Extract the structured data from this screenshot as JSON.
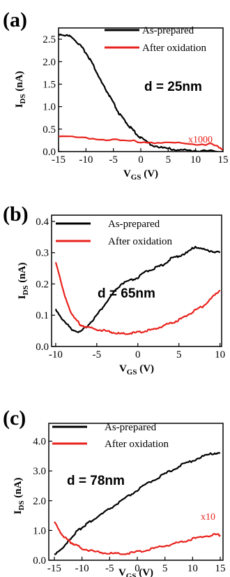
{
  "chart_data": [
    {
      "type": "line",
      "panel_label": "(a)",
      "xlabel": "V_GS (V)",
      "ylabel": "I_DS (nA)",
      "xlim": [
        -15,
        15
      ],
      "ylim": [
        0,
        2.75
      ],
      "xticks": [
        "-15",
        "-10",
        "-5",
        "0",
        "5",
        "10",
        "15"
      ],
      "yticks": [
        "0.0",
        "0.5",
        "1.0",
        "1.5",
        "2.0",
        "2.5"
      ],
      "annotation": "d = 25nm",
      "multiplier": "x1000",
      "legend_position": "top-right",
      "colors": {
        "As-prepared": "#000000",
        "After oxidation": "#e8221c"
      },
      "series": [
        {
          "name": "As-prepared",
          "x": [
            -15,
            -13.5,
            -12.5,
            -11,
            -10,
            -9,
            -8,
            -7,
            -6,
            -5,
            -4,
            -3,
            -2,
            -1,
            0,
            2,
            4,
            6,
            8,
            10,
            12,
            15
          ],
          "y": [
            2.62,
            2.58,
            2.55,
            2.35,
            2.2,
            2.0,
            1.75,
            1.5,
            1.3,
            1.08,
            0.85,
            0.7,
            0.55,
            0.42,
            0.3,
            0.15,
            0.08,
            0.05,
            0.03,
            0.02,
            0.01,
            0.01
          ]
        },
        {
          "name": "After oxidation",
          "x": [
            -15,
            -10,
            -5,
            0,
            5,
            10,
            13,
            15
          ],
          "y": [
            0.34,
            0.3,
            0.26,
            0.22,
            0.19,
            0.17,
            0.16,
            0.06
          ]
        }
      ]
    },
    {
      "type": "line",
      "panel_label": "(b)",
      "xlabel": "V_GS (V)",
      "ylabel": "I_DS (nA)",
      "xlim": [
        -10.5,
        10.2
      ],
      "ylim": [
        0,
        0.42
      ],
      "xticks": [
        "-10",
        "-5",
        "0",
        "5",
        "10"
      ],
      "yticks": [
        "0.0",
        "0.1",
        "0.2",
        "0.3",
        "0.4"
      ],
      "annotation": "d = 65nm",
      "legend_position": "top",
      "colors": {
        "As-prepared": "#000000",
        "After oxidation": "#e8221c"
      },
      "series": [
        {
          "name": "As-prepared",
          "x": [
            -10,
            -9,
            -8,
            -7,
            -6,
            -5,
            -4,
            -3,
            -2,
            -1,
            0,
            1,
            2,
            3,
            4,
            5,
            6,
            7,
            8,
            9,
            10
          ],
          "y": [
            0.12,
            0.08,
            0.055,
            0.045,
            0.07,
            0.1,
            0.135,
            0.17,
            0.2,
            0.21,
            0.22,
            0.24,
            0.25,
            0.26,
            0.28,
            0.29,
            0.3,
            0.32,
            0.31,
            0.305,
            0.3
          ]
        },
        {
          "name": "After oxidation",
          "x": [
            -10,
            -9,
            -8,
            -7,
            -6,
            -5,
            -4,
            -3,
            -2,
            -1,
            0,
            1,
            2,
            3,
            4,
            5,
            6,
            7,
            8,
            9,
            10
          ],
          "y": [
            0.27,
            0.17,
            0.1,
            0.07,
            0.06,
            0.055,
            0.05,
            0.045,
            0.04,
            0.042,
            0.045,
            0.05,
            0.055,
            0.065,
            0.075,
            0.085,
            0.1,
            0.115,
            0.13,
            0.155,
            0.18
          ]
        }
      ]
    },
    {
      "type": "line",
      "panel_label": "(c)",
      "xlabel": "V_GS (V)",
      "ylabel": "I_DS (nA)",
      "xlim": [
        -16,
        15.5
      ],
      "ylim": [
        0,
        4.6
      ],
      "xticks": [
        "-15",
        "-10",
        "-5",
        "0",
        "5",
        "10",
        "15"
      ],
      "yticks": [
        "0.0",
        "1.0",
        "2.0",
        "3.0",
        "4.0"
      ],
      "annotation": "d = 78nm",
      "multiplier": "x10",
      "legend_position": "top",
      "colors": {
        "As-prepared": "#000000",
        "After oxidation": "#e8221c"
      },
      "series": [
        {
          "name": "As-prepared",
          "x": [
            -15,
            -13,
            -12,
            -11,
            -10,
            -9,
            -8,
            -6,
            -4,
            -2,
            0,
            2,
            4,
            6,
            8,
            10,
            12,
            14,
            15
          ],
          "y": [
            0.2,
            0.5,
            0.75,
            0.95,
            1.1,
            1.25,
            1.35,
            1.6,
            1.85,
            2.1,
            2.35,
            2.6,
            2.8,
            3.0,
            3.2,
            3.35,
            3.5,
            3.6,
            3.6
          ]
        },
        {
          "name": "After oxidation",
          "x": [
            -15,
            -14,
            -13,
            -12,
            -11,
            -10,
            -8,
            -6,
            -4,
            -2,
            0,
            2,
            4,
            6,
            8,
            10,
            12,
            14,
            15
          ],
          "y": [
            1.3,
            0.95,
            0.75,
            0.6,
            0.5,
            0.4,
            0.3,
            0.25,
            0.22,
            0.22,
            0.28,
            0.35,
            0.45,
            0.52,
            0.62,
            0.72,
            0.8,
            0.85,
            0.85
          ]
        }
      ]
    }
  ]
}
